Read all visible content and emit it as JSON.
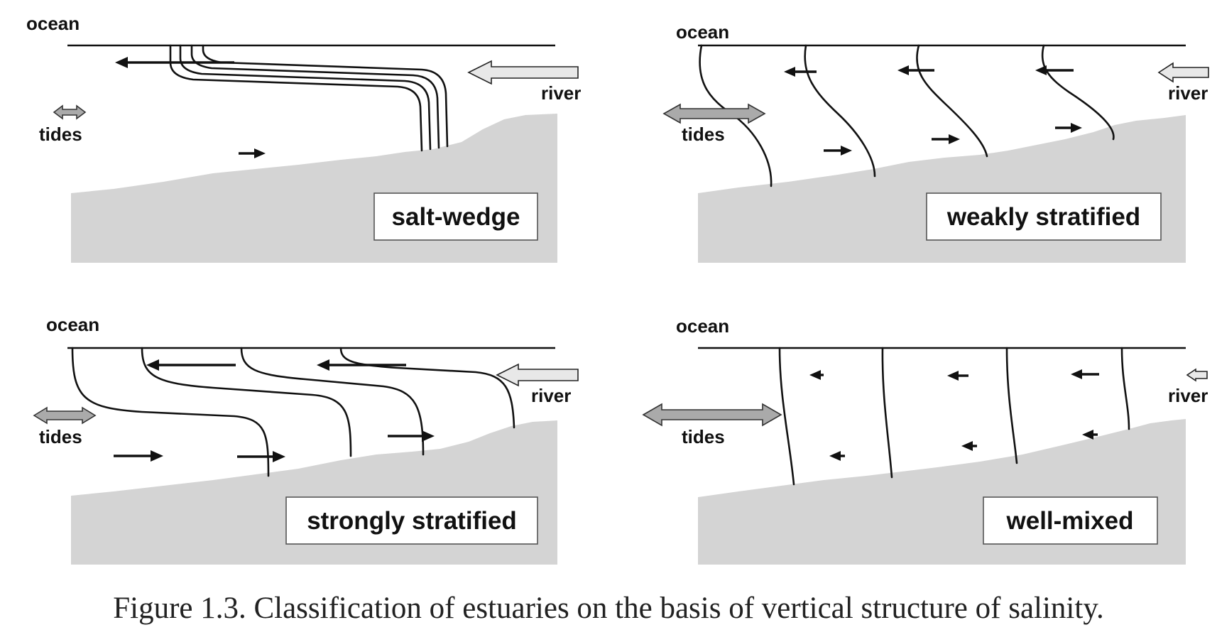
{
  "panels": {
    "salt_wedge": {
      "ocean": "ocean",
      "river": "river",
      "tides": "tides",
      "type": "salt-wedge"
    },
    "weakly_stratified": {
      "ocean": "ocean",
      "river": "river",
      "tides": "tides",
      "type": "weakly stratified"
    },
    "strongly_stratified": {
      "ocean": "ocean",
      "river": "river",
      "tides": "tides",
      "type": "strongly stratified"
    },
    "well_mixed": {
      "ocean": "ocean",
      "river": "river",
      "tides": "tides",
      "type": "well-mixed"
    }
  },
  "caption": "Figure 1.3. Classification of estuaries on the basis of vertical structure of salinity.",
  "colors": {
    "bottom": "#d4d4d4",
    "river_arrow": "#e8e8e8",
    "tides_arrow": "#aaaaaa",
    "lines": "#111111"
  }
}
